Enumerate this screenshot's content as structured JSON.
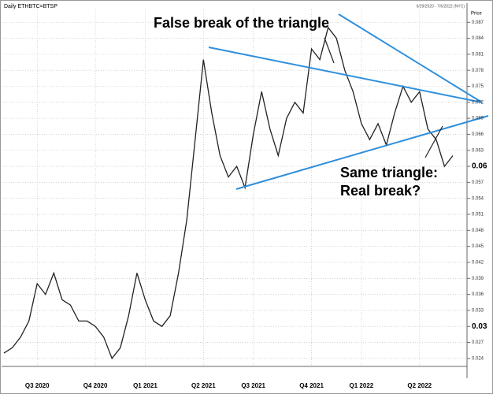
{
  "chart_data": {
    "type": "line",
    "title": "Daily ETHBTC=BTSP",
    "subtitle": "6/29/2020 - 7/6/2022 (NYC)",
    "y_label": "Price",
    "annotations": [
      "False break of the triangle",
      "Same triangle:",
      "Real break?"
    ],
    "categories": [
      null,
      null,
      null,
      null,
      "Q3 2020",
      null,
      null,
      null,
      null,
      null,
      null,
      "Q4 2020",
      null,
      null,
      null,
      null,
      null,
      "Q1 2021",
      null,
      null,
      null,
      null,
      null,
      null,
      "Q2 2021",
      null,
      null,
      null,
      null,
      null,
      "Q3 2021",
      null,
      null,
      null,
      null,
      null,
      null,
      "Q4 2021",
      null,
      null,
      null,
      null,
      null,
      "Q1 2022",
      null,
      null,
      null,
      null,
      null,
      null,
      "Q2 2022",
      null,
      null,
      null,
      null
    ],
    "values": [
      0.025,
      0.026,
      0.028,
      0.031,
      0.038,
      0.036,
      0.04,
      0.035,
      0.034,
      0.031,
      0.031,
      0.03,
      0.028,
      0.024,
      0.026,
      0.032,
      0.04,
      0.035,
      0.031,
      0.03,
      0.032,
      0.04,
      0.05,
      0.065,
      0.08,
      0.07,
      0.062,
      0.058,
      0.06,
      0.056,
      0.066,
      0.074,
      0.067,
      0.062,
      0.069,
      0.072,
      0.07,
      0.082,
      0.08,
      0.086,
      0.084,
      0.078,
      0.074,
      0.068,
      0.065,
      0.068,
      0.064,
      0.07,
      0.075,
      0.072,
      0.074,
      0.067,
      0.065,
      0.06,
      0.062
    ],
    "color": "#222222",
    "ylim": [
      0.0225,
      0.0894
    ],
    "yticks": [
      0.024,
      0.027,
      0.03,
      0.033,
      0.036,
      0.039,
      0.042,
      0.045,
      0.048,
      0.051,
      0.054,
      0.057,
      0.06,
      0.063,
      0.066,
      0.069,
      0.072,
      0.075,
      0.078,
      0.081,
      0.084,
      0.087
    ],
    "bold_ticks": [
      0.03,
      0.06
    ],
    "grid": true
  }
}
